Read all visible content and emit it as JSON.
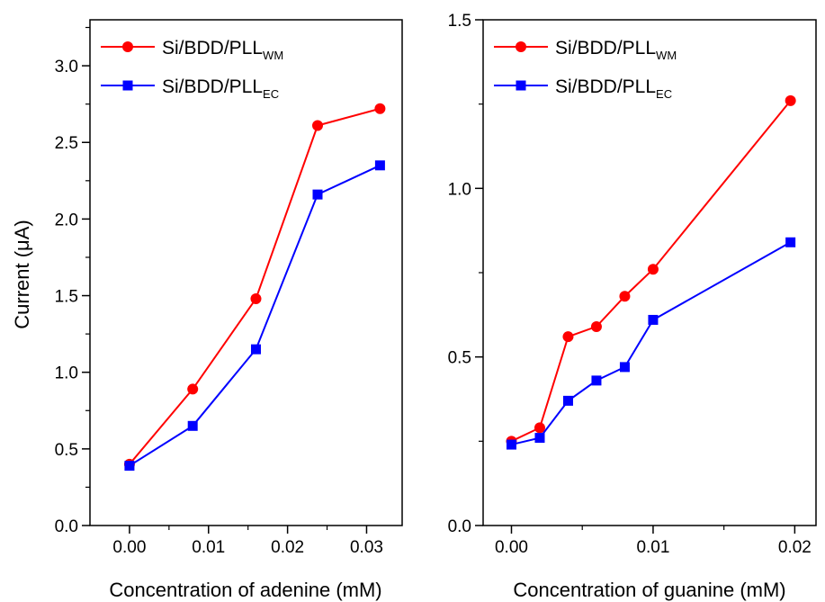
{
  "colors": {
    "wm": "#ff0000",
    "ec": "#0000ff",
    "axis": "#000000"
  },
  "ylabel_parts": {
    "pre": "Current (",
    "mu": "μ",
    "post": "A)"
  },
  "chart_data": [
    {
      "type": "line",
      "xlabel": "Concentration of adenine (mM)",
      "xlim": [
        -0.005,
        0.0345
      ],
      "ylim": [
        0,
        3.3
      ],
      "xticks": [
        0.0,
        0.01,
        0.02,
        0.03
      ],
      "xtick_labels": [
        "0.00",
        "0.01",
        "0.02",
        "0.03"
      ],
      "yticks": [
        0.0,
        0.5,
        1.0,
        1.5,
        2.0,
        2.5,
        3.0
      ],
      "ytick_labels": [
        "0.0",
        "0.5",
        "1.0",
        "1.5",
        "2.0",
        "2.5",
        "3.0"
      ],
      "legend_position": "top-left",
      "series": [
        {
          "name": "Si/BDD/PLL",
          "subscript": "WM",
          "marker": "circle",
          "color": "#ff0000",
          "x": [
            0.0,
            0.008,
            0.016,
            0.0238,
            0.0317
          ],
          "y": [
            0.4,
            0.89,
            1.48,
            2.61,
            2.72
          ]
        },
        {
          "name": "Si/BDD/PLL",
          "subscript": "EC",
          "marker": "square",
          "color": "#0000ff",
          "x": [
            0.0,
            0.008,
            0.016,
            0.0238,
            0.0317
          ],
          "y": [
            0.39,
            0.65,
            1.15,
            2.16,
            2.35
          ]
        }
      ]
    },
    {
      "type": "line",
      "xlabel": "Concentration of guanine (mM)",
      "xlim": [
        -0.002,
        0.0215
      ],
      "ylim": [
        0,
        1.5
      ],
      "xticks": [
        0.0,
        0.01,
        0.02
      ],
      "xtick_labels": [
        "0.00",
        "0.01",
        "0.02"
      ],
      "yticks": [
        0.0,
        0.5,
        1.0,
        1.5
      ],
      "ytick_labels": [
        "0.0",
        "0.5",
        "1.0",
        "1.5"
      ],
      "legend_position": "top-left",
      "series": [
        {
          "name": "Si/BDD/PLL",
          "subscript": "WM",
          "marker": "circle",
          "color": "#ff0000",
          "x": [
            0.0,
            0.002,
            0.004,
            0.006,
            0.008,
            0.01,
            0.0197
          ],
          "y": [
            0.25,
            0.29,
            0.56,
            0.59,
            0.68,
            0.76,
            1.26
          ]
        },
        {
          "name": "Si/BDD/PLL",
          "subscript": "EC",
          "marker": "square",
          "color": "#0000ff",
          "x": [
            0.0,
            0.002,
            0.004,
            0.006,
            0.008,
            0.01,
            0.0197
          ],
          "y": [
            0.24,
            0.26,
            0.37,
            0.43,
            0.47,
            0.61,
            0.84
          ]
        }
      ]
    }
  ]
}
